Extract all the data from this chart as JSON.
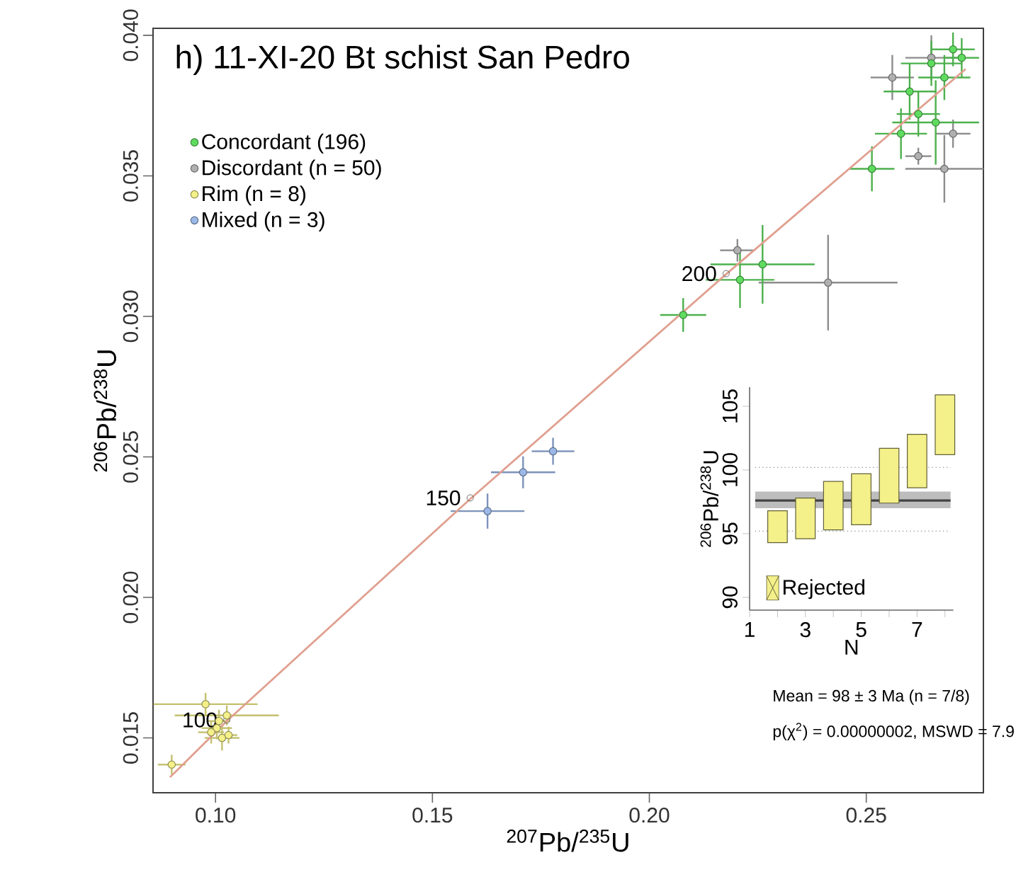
{
  "chart_data": [
    {
      "type": "scatter",
      "title": "h) 11-XI-20 Bt schist San Pedro",
      "xlabel": "$^{207}$Pb/$^{235}$U",
      "ylabel": "$^{206}$Pb/$^{238}$U",
      "xlim": [
        0.0856,
        0.277
      ],
      "ylim": [
        0.01305,
        0.04025
      ],
      "xticks": [
        {
          "value": 0.1,
          "label": "0.10"
        },
        {
          "value": 0.15,
          "label": "0.15"
        },
        {
          "value": 0.2,
          "label": "0.20"
        },
        {
          "value": 0.25,
          "label": "0.25"
        }
      ],
      "yticks": [
        {
          "value": 0.015,
          "label": "0.015"
        },
        {
          "value": 0.02,
          "label": "0.020"
        },
        {
          "value": 0.025,
          "label": "0.025"
        },
        {
          "value": 0.03,
          "label": "0.030"
        },
        {
          "value": 0.035,
          "label": "0.035"
        },
        {
          "value": 0.04,
          "label": "0.040"
        }
      ],
      "legend": "top left",
      "series": [
        {
          "type": "line",
          "color": "#e0a090",
          "x": [
            0.0895,
            0.1026,
            0.1587,
            0.2177,
            0.2729
          ],
          "values": [
            0.0136,
            0.0156,
            0.0235,
            0.0315,
            0.0388
          ]
        },
        {
          "name": "Concordant (196)",
          "color": "#5fdc5f",
          "x": [
            0.2078,
            0.2209,
            0.2261,
            0.2513,
            0.266,
            0.26,
            0.265,
            0.27,
            0.262,
            0.258,
            0.268,
            0.272
          ],
          "values": [
            0.03005,
            0.0313,
            0.03185,
            0.03525,
            0.0369,
            0.038,
            0.039,
            0.0395,
            0.0372,
            0.0365,
            0.0385,
            0.0392
          ],
          "xerrors": [
            0.0053,
            0.0079,
            0.012,
            0.0052,
            0.01,
            0.006,
            0.007,
            0.005,
            0.005,
            0.006,
            0.006,
            0.004
          ],
          "errors": [
            0.0006,
            0.001,
            0.0014,
            0.0008,
            0.0015,
            0.001,
            0.0008,
            0.0006,
            0.0008,
            0.0009,
            0.0008,
            0.0007
          ]
        },
        {
          "name": "Discordant (n = 50)",
          "color": "#b0b0b0",
          "x": [
            0.2412,
            0.268,
            0.2203,
            0.256,
            0.27,
            0.265,
            0.262
          ],
          "values": [
            0.0312,
            0.03525,
            0.03235,
            0.0385,
            0.0365,
            0.0392,
            0.0357
          ],
          "xerrors": [
            0.016,
            0.009,
            0.004,
            0.005,
            0.004,
            0.006,
            0.003
          ],
          "errors": [
            0.0017,
            0.0012,
            0.0004,
            0.0008,
            0.0005,
            0.0008,
            0.0003
          ]
        },
        {
          "name": "Rim (n = 8)",
          "color": "#f4f08a",
          "x": [
            0.0899,
            0.0977,
            0.1026,
            0.1003,
            0.1015,
            0.099,
            0.1008,
            0.103
          ],
          "values": [
            0.01405,
            0.0162,
            0.0158,
            0.01535,
            0.015,
            0.0152,
            0.0156,
            0.0151
          ],
          "xerrors": [
            0.0032,
            0.012,
            0.012,
            0.0035,
            0.004,
            0.003,
            0.0025,
            0.002
          ],
          "errors": [
            0.00035,
            0.0004,
            0.00035,
            0.0004,
            0.00045,
            0.0004,
            0.0004,
            0.0003
          ]
        },
        {
          "name": "Mixed (n = 3)",
          "color": "#9bb8e8",
          "x": [
            0.1627,
            0.1709,
            0.1778
          ],
          "values": [
            0.02307,
            0.02445,
            0.0252
          ],
          "xerrors": [
            0.0085,
            0.0074,
            0.0049
          ],
          "errors": [
            0.000625,
            0.00057,
            0.00048
          ]
        }
      ],
      "annotations": [
        {
          "text": "100",
          "x": 0.1026,
          "y": 0.01564
        },
        {
          "text": "150",
          "x": 0.1587,
          "y": 0.02354
        },
        {
          "text": "200",
          "x": 0.2177,
          "y": 0.03152
        },
        "Mean = 98 ± 3 Ma (n = 7/8)",
        "p(χ$^{2}$) = 0.00000002, MSWD = 7.9"
      ]
    },
    {
      "type": "bar",
      "xlabel": "N",
      "ylabel": "$^{206}$Pb/$^{238}$U",
      "xlim": [
        1,
        8.3
      ],
      "ylim": [
        89,
        106.5
      ],
      "xticks": [
        1,
        {
          "value": 2,
          "label": null
        },
        3,
        {
          "value": 4,
          "label": null
        },
        5,
        {
          "value": 6,
          "label": null
        },
        7,
        {
          "value": 8,
          "label": null
        }
      ],
      "yticks": [
        90,
        95,
        100,
        105
      ],
      "legend": "bottom left",
      "series": [
        {
          "color": "#f4f08a",
          "x": [
            2,
            3,
            4,
            5,
            6,
            7,
            8
          ],
          "base": [
            94.3,
            94.6,
            95.3,
            95.7,
            97.4,
            98.6,
            101.2
          ],
          "values": [
            2.5,
            3.2,
            3.8,
            4.0,
            4.3,
            4.2,
            4.7
          ]
        },
        {
          "name": "Rejected",
          "color": "#f4f08a"
        }
      ],
      "bands": [
        {
          "axis": "y",
          "from": 97.0,
          "to": 98.3,
          "color": "#bdbdbd"
        }
      ],
      "ref_lines": [
        {
          "axis": "y",
          "value": 97.6,
          "color": "#444444",
          "line_style": "solid"
        },
        {
          "axis": "y",
          "value": 95.2,
          "color": "#888888",
          "line_style": "dotted"
        },
        {
          "axis": "y",
          "value": 100.2,
          "color": "#888888",
          "line_style": "dotted"
        }
      ]
    }
  ]
}
